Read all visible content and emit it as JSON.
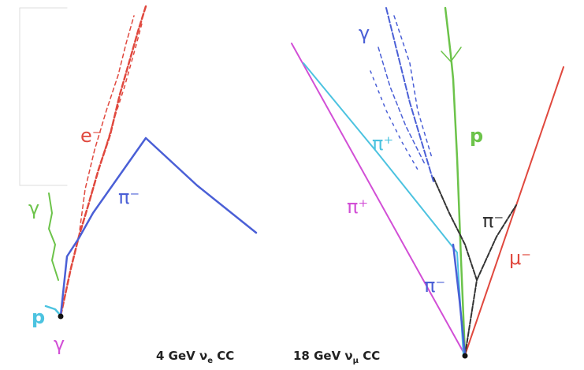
{
  "left_event": {
    "labels": [
      "e⁻",
      "π⁻",
      "γ",
      "p",
      "γ"
    ],
    "caption": {
      "main": "4 GeV ν",
      "sub": "e",
      "tail": " CC"
    }
  },
  "right_event": {
    "labels": [
      "γ",
      "π⁺",
      "π⁺",
      "p",
      "π⁻",
      "μ⁻",
      "π⁻"
    ],
    "caption": {
      "main": "18 GeV ν",
      "sub": "μ",
      "tail": " CC"
    }
  }
}
